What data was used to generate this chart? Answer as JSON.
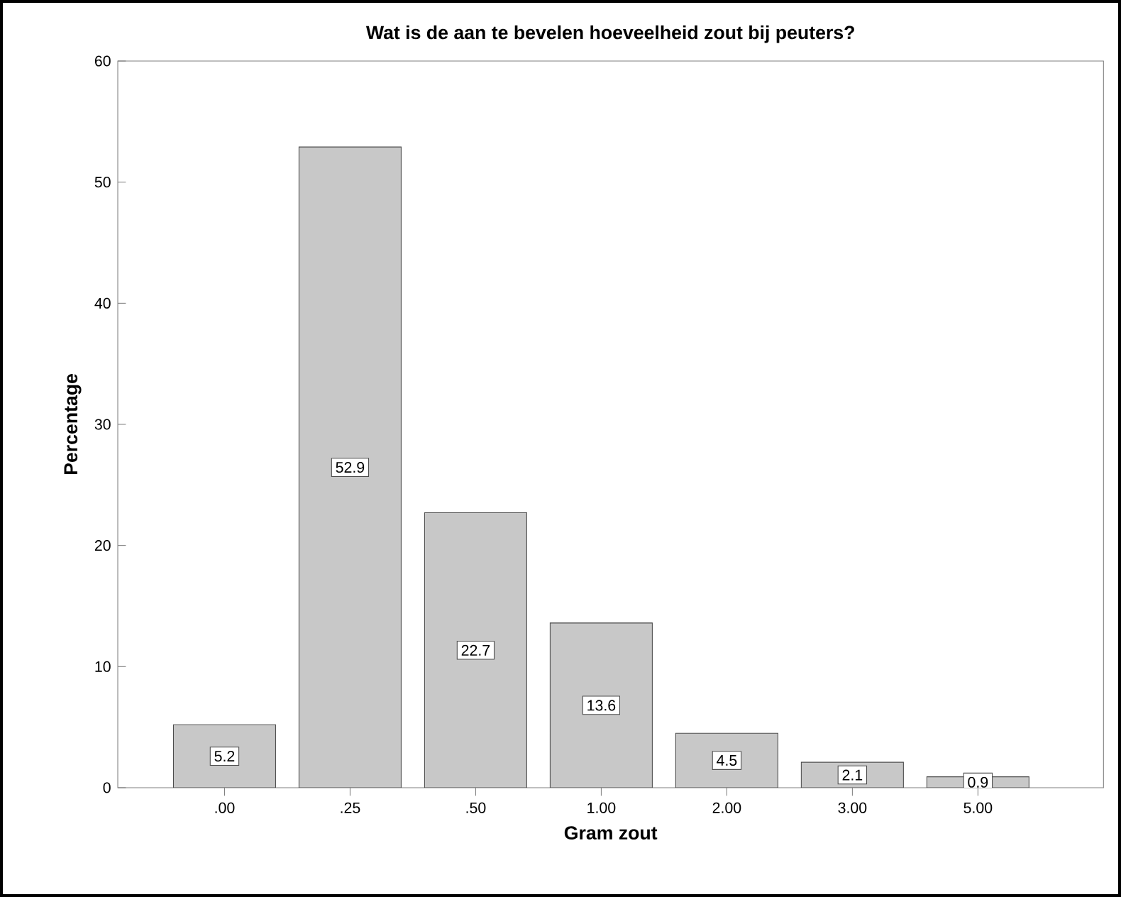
{
  "chart_data": {
    "type": "bar",
    "title": "Wat is de aan te bevelen hoeveelheid zout bij peuters?",
    "xlabel": "Gram zout",
    "ylabel": "Percentage",
    "categories": [
      ".00",
      ".25",
      ".50",
      "1.00",
      "2.00",
      "3.00",
      "5.00"
    ],
    "values": [
      5.2,
      52.9,
      22.7,
      13.6,
      4.5,
      2.1,
      0.9
    ],
    "color": "#c8c8c8",
    "ylim": [
      0,
      60
    ],
    "yticks": [
      0,
      10,
      20,
      30,
      40,
      50,
      60
    ],
    "data_labels": true
  }
}
